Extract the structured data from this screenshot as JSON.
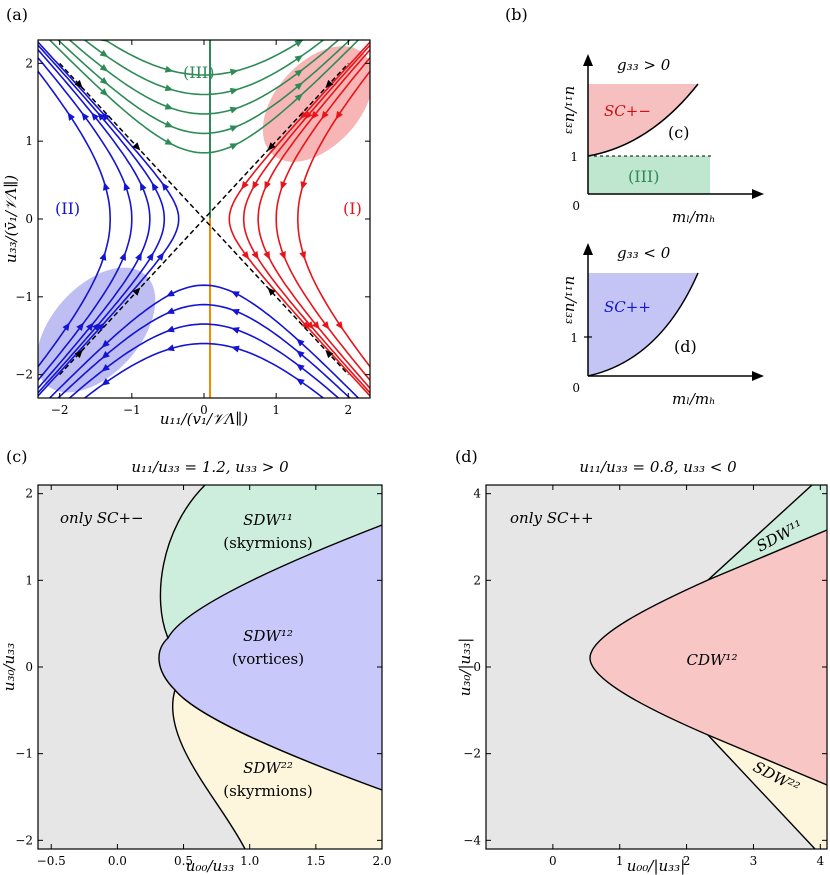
{
  "chart_data": [
    {
      "panel_label": "(a)",
      "type": "streamplot",
      "xlabel": "u₁₁/(v₁/𝒱Λ∥)",
      "ylabel": "u₃₃/(v̄₁/𝒱Λ∥)",
      "xlim": [
        -2.3,
        2.3
      ],
      "ylim": [
        -2.3,
        2.3
      ],
      "xticks": [
        "−2",
        "−1",
        "0",
        "1",
        "2"
      ],
      "yticks": [
        "−2",
        "−1",
        "0",
        "1",
        "2"
      ],
      "regions": [
        {
          "label": "(I)",
          "color": "#e8141a"
        },
        {
          "label": "(II)",
          "color": "#1414d2"
        },
        {
          "label": "(III)",
          "color": "#2e8b57"
        }
      ],
      "separatrices": "u₃₃ = ±u₁₁",
      "axis_lines": [
        {
          "where": "x=0, y>0",
          "color": "#2e8b57"
        },
        {
          "where": "x=0, y<0",
          "color": "#f08c00"
        }
      ],
      "shaded": [
        {
          "where": "upper right",
          "color": "#f7a8a8"
        },
        {
          "where": "lower left",
          "color": "#b3b3f0"
        }
      ]
    },
    {
      "panel_label": "(b)",
      "type": "schematic",
      "subpanels": [
        {
          "title": "g₃₃ > 0",
          "ylabel": "u₁₁/u₃₃",
          "xlabel": "mₗ/mₕ",
          "yticks": [
            "1"
          ],
          "xticks": [
            "0"
          ],
          "regions": [
            {
              "label": "SC+−",
              "color": "#f7c0c0"
            },
            {
              "label": "(III)",
              "color": "#bfe6cf"
            }
          ],
          "panel_ref": "(c)"
        },
        {
          "title": "g₃₃ < 0",
          "ylabel": "u₁₁/u₃₃",
          "xlabel": "mₗ/mₕ",
          "yticks": [
            "1"
          ],
          "xticks": [
            "0"
          ],
          "regions": [
            {
              "label": "SC++",
              "color": "#c4c4f5"
            }
          ],
          "panel_ref": "(d)"
        }
      ]
    },
    {
      "panel_label": "(c)",
      "type": "phase_diagram",
      "title": "u₁₁/u₃₃ = 1.2, u₃₃ > 0",
      "xlabel": "u₀₀/u₃₃",
      "ylabel": "u₃₀/u₃₃",
      "xlim": [
        -0.6,
        2.0
      ],
      "ylim": [
        -2.1,
        2.1
      ],
      "xticks": [
        -0.5,
        0.0,
        0.5,
        1.0,
        1.5,
        2.0
      ],
      "xtick_labels": [
        "−0.5",
        "0.0",
        "0.5",
        "1.0",
        "1.5",
        "2.0"
      ],
      "yticks": [
        -2,
        -1,
        0,
        1,
        2
      ],
      "ytick_labels": [
        "−2",
        "−1",
        "0",
        "1",
        "2"
      ],
      "phases": [
        {
          "name": "only SC+−",
          "color": "#e6e6e6"
        },
        {
          "name": "SDW¹¹",
          "note": "(skyrmions)",
          "color": "#cdeedd"
        },
        {
          "name": "SDW¹²",
          "note": "(vortices)",
          "color": "#c8c8fa"
        },
        {
          "name": "SDW²²",
          "note": "(skyrmions)",
          "color": "#fdf6dc"
        }
      ]
    },
    {
      "panel_label": "(d)",
      "type": "phase_diagram",
      "title": "u₁₁/u₃₃ = 0.8, u₃₃ < 0",
      "xlabel": "u₀₀/|u₃₃|",
      "ylabel": "u₃₀/|u₃₃|",
      "xlim": [
        -1.0,
        4.1
      ],
      "ylim": [
        -4.2,
        4.2
      ],
      "xticks": [
        0,
        1,
        2,
        3,
        4
      ],
      "xtick_labels": [
        "0",
        "1",
        "2",
        "3",
        "4"
      ],
      "yticks": [
        -4,
        -2,
        0,
        2,
        4
      ],
      "ytick_labels": [
        "−4",
        "−2",
        "0",
        "2",
        "4"
      ],
      "phases": [
        {
          "name": "only SC++",
          "color": "#e6e6e6"
        },
        {
          "name": "CDW¹²",
          "color": "#f9c6c6"
        },
        {
          "name": "SDW¹¹",
          "color": "#cdeedd"
        },
        {
          "name": "SDW²²",
          "color": "#fdf6dc"
        }
      ]
    }
  ]
}
